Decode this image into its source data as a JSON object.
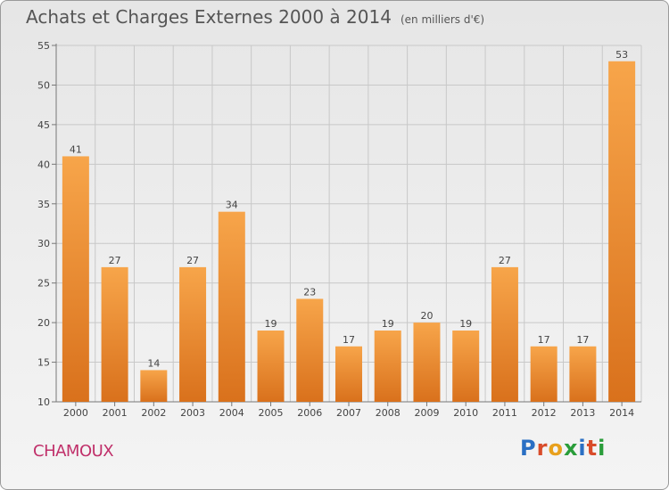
{
  "title": "Achats et Charges Externes 2000 à 2014",
  "subtitle": "(en milliers d'€)",
  "commune": "CHAMOUX",
  "brand": "Proxiti",
  "colors": {
    "bar_top": "#f7a54a",
    "bar_bottom": "#d9711c",
    "commune_text": "#c0306a",
    "brand_letters": [
      "#2a6fc4",
      "#d94c2a",
      "#e8a01c",
      "#2a9d3a",
      "#2a6fc4",
      "#d94c2a",
      "#2a9d3a"
    ]
  },
  "chart_data": {
    "type": "bar",
    "categories": [
      "2000",
      "2001",
      "2002",
      "2003",
      "2004",
      "2005",
      "2006",
      "2007",
      "2008",
      "2009",
      "2010",
      "2011",
      "2012",
      "2013",
      "2014"
    ],
    "values": [
      41,
      27,
      14,
      27,
      34,
      19,
      23,
      17,
      19,
      20,
      19,
      27,
      17,
      17,
      53
    ],
    "ylim": [
      10,
      55
    ],
    "yticks": [
      10,
      15,
      20,
      25,
      30,
      35,
      40,
      45,
      50,
      55
    ],
    "grid": true,
    "xlabel": "",
    "ylabel": ""
  }
}
